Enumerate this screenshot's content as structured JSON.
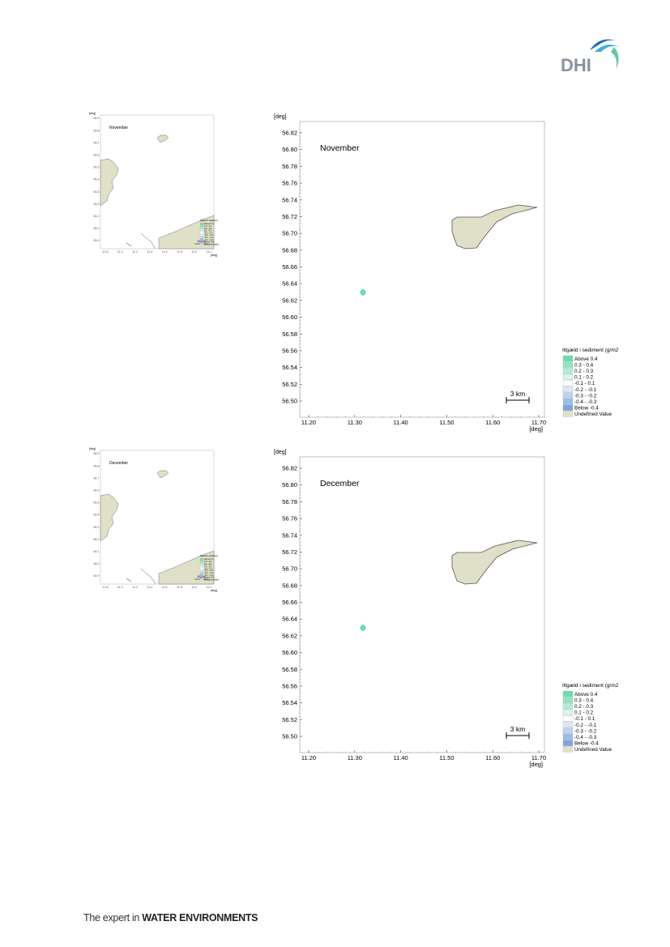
{
  "logo": {
    "text": "DHI",
    "color": "#8a9299",
    "wave_colors": [
      "#3ab0d9",
      "#1e6fae",
      "#61c6a8"
    ]
  },
  "footer": {
    "prefix": "The expert in ",
    "emphasis": "WATER ENVIRONMENTS"
  },
  "colors": {
    "land": "#e0dfc8",
    "land_stroke": "#555555",
    "plume": "#6ddcb0",
    "frame": "#b0b0b0"
  },
  "maps": [
    {
      "month": "November",
      "unit_label": "[deg]",
      "y_ticks": [
        "56.82",
        "56.80",
        "56.78",
        "56.76",
        "56.74",
        "56.72",
        "56.70",
        "56.68",
        "56.66",
        "56.64",
        "56.62",
        "56.60",
        "56.58",
        "56.56",
        "56.54",
        "56.52",
        "56.50"
      ],
      "x_ticks": [
        "11.20",
        "11.30",
        "11.40",
        "11.50",
        "11.60",
        "11.70"
      ],
      "scale_bar": "3 km"
    },
    {
      "month": "December",
      "unit_label": "[deg]",
      "y_ticks": [
        "56.82",
        "56.80",
        "56.78",
        "56.76",
        "56.74",
        "56.72",
        "56.70",
        "56.68",
        "56.66",
        "56.64",
        "56.62",
        "56.60",
        "56.58",
        "56.56",
        "56.54",
        "56.52",
        "56.50"
      ],
      "x_ticks": [
        "11.20",
        "11.30",
        "11.40",
        "11.50",
        "11.60",
        "11.70"
      ],
      "scale_bar": "3 km"
    }
  ],
  "legend": {
    "title": "Iltgæld i sediment (g/m2",
    "items": [
      {
        "label": "Above  0.4",
        "color": "#6ddcb0"
      },
      {
        "label": "  0.3 -  0.4",
        "color": "#8fe4c2"
      },
      {
        "label": "  0.2 -  0.3",
        "color": "#b3edd5"
      },
      {
        "label": "  0.1 -  0.2",
        "color": "#d8f6ea"
      },
      {
        "label": " -0.1 -  0.1",
        "color": "#ffffff"
      },
      {
        "label": " -0.2 - -0.1",
        "color": "#dde8f6"
      },
      {
        "label": " -0.3 - -0.2",
        "color": "#bcd2ee"
      },
      {
        "label": " -0.4 - -0.3",
        "color": "#9bbce6"
      },
      {
        "label": "Below -0.4",
        "color": "#7aa6de"
      },
      {
        "label": "Undefined Value",
        "color": "#e0dfc8"
      }
    ]
  },
  "overview_maps": [
    {
      "month": "November",
      "y_ticks": [
        "56.9",
        "56.8",
        "56.7",
        "56.6",
        "56.5",
        "56.4",
        "56.3",
        "56.2",
        "56.1",
        "56.0",
        "55.9"
      ],
      "x_ticks": [
        "10.8",
        "11.0",
        "11.2",
        "11.4",
        "11.6",
        "11.8",
        "12.0",
        "12.2"
      ],
      "scale_bar": "10 km",
      "unit_label": "[deg]",
      "legend_title": "Iltgæld i sediment (g/m2)",
      "legend_items": [
        "Above  0.4",
        "0.3 - 0.4",
        "0.2 - 0.3",
        "0.1 - 0.2",
        "-0.1 - 0.1",
        "-0.2 - -0.1",
        "-0.3 - -0.2",
        "-0.4 - -0.3",
        "Below -0.4",
        "Undefined Value"
      ]
    },
    {
      "month": "December",
      "y_ticks": [
        "56.9",
        "56.8",
        "56.7",
        "56.6",
        "56.5",
        "56.4",
        "56.3",
        "56.2",
        "56.1",
        "56.0",
        "55.9"
      ],
      "x_ticks": [
        "10.8",
        "11.0",
        "11.2",
        "11.4",
        "11.6",
        "11.8",
        "12.0",
        "12.2"
      ],
      "scale_bar": "10 km",
      "unit_label": "[deg]",
      "legend_title": "Iltgæld i sediment (g/m2)",
      "legend_items": [
        "Above  0.4",
        "0.3 - 0.4",
        "0.2 - 0.3",
        "0.1 - 0.2",
        "-0.1 - 0.1",
        "-0.2 - -0.1",
        "-0.3 - -0.2",
        "-0.4 - -0.3",
        "Below -0.4",
        "Undefined Value"
      ]
    }
  ]
}
